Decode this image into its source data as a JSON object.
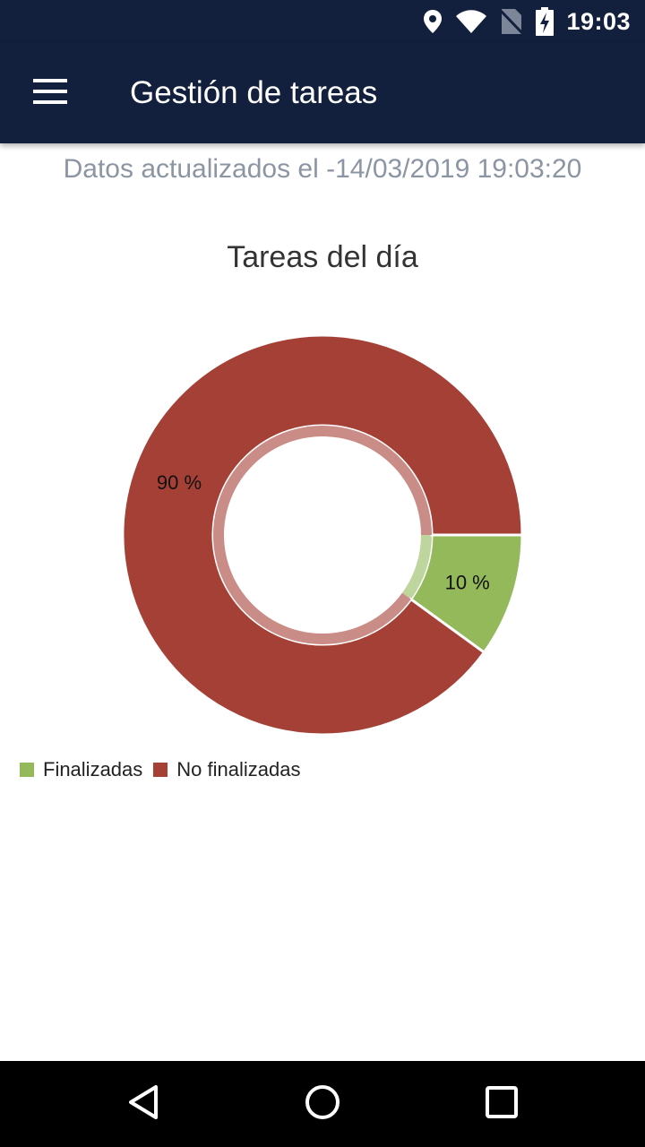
{
  "status_bar": {
    "time": "19:03",
    "icons": [
      "location-icon",
      "wifi-icon",
      "no-sim-icon",
      "battery-charging-icon"
    ]
  },
  "app_bar": {
    "title": "Gestión de tareas",
    "menu_icon": "menu-icon",
    "background": "#12203d"
  },
  "updated_text": "Datos actualizados el -14/03/2019 19:03:20",
  "chart_data": {
    "type": "pie",
    "title": "Tareas del día",
    "style": "donut",
    "slices": [
      {
        "name": "Finalizadas",
        "value": 10,
        "label": "10 %",
        "color": "#93b95b"
      },
      {
        "name": "No finalizadas",
        "value": 90,
        "label": "90 %",
        "color": "#a54036"
      }
    ],
    "legend_position": "bottom-left"
  },
  "nav_bar": {
    "icons": [
      "back-icon",
      "home-icon",
      "recents-icon"
    ]
  }
}
